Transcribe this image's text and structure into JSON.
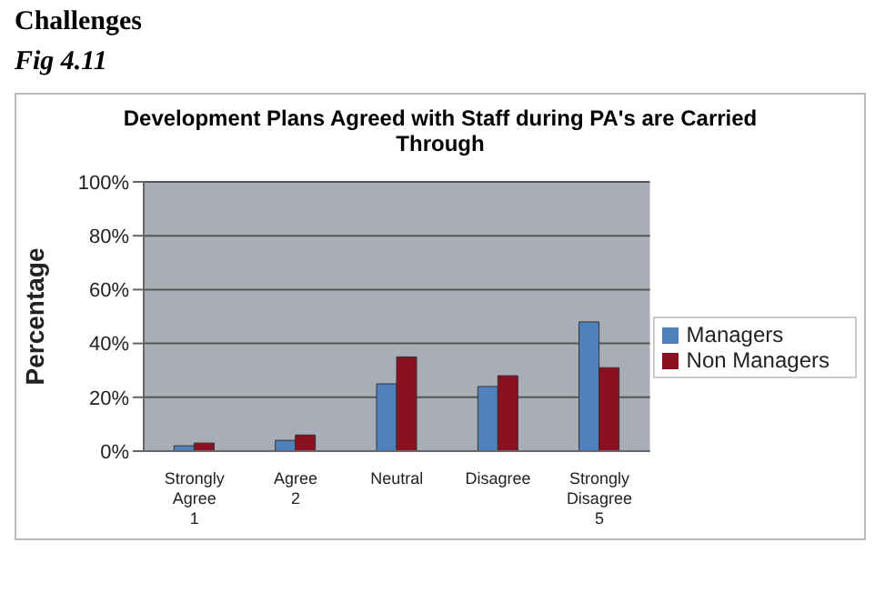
{
  "chart_data": {
    "type": "bar",
    "title": "Development Plans Agreed with Staff during PA's are Carried Through",
    "annotations": [
      "Challenges",
      "Fig 4.11"
    ],
    "ylabel": "Percentage",
    "categories": [
      "Strongly\nAgree\n1",
      "Agree\n2",
      "Neutral",
      "Disagree",
      "Strongly\nDisagree\n5"
    ],
    "series": [
      {
        "name": "Managers",
        "color": "#4f81bd",
        "values": [
          2,
          4,
          25,
          24,
          48
        ]
      },
      {
        "name": "Non Managers",
        "color": "#8b1020",
        "values": [
          3,
          6,
          35,
          28,
          31
        ]
      }
    ],
    "ylim": [
      0,
      100
    ],
    "yticks": [
      {
        "value": 0,
        "label": "0%"
      },
      {
        "value": 20,
        "label": "20%"
      },
      {
        "value": 40,
        "label": "40%"
      },
      {
        "value": 60,
        "label": "60%"
      },
      {
        "value": 80,
        "label": "80%"
      },
      {
        "value": 100,
        "label": "100%"
      }
    ],
    "grid": "y",
    "legend": "right"
  }
}
